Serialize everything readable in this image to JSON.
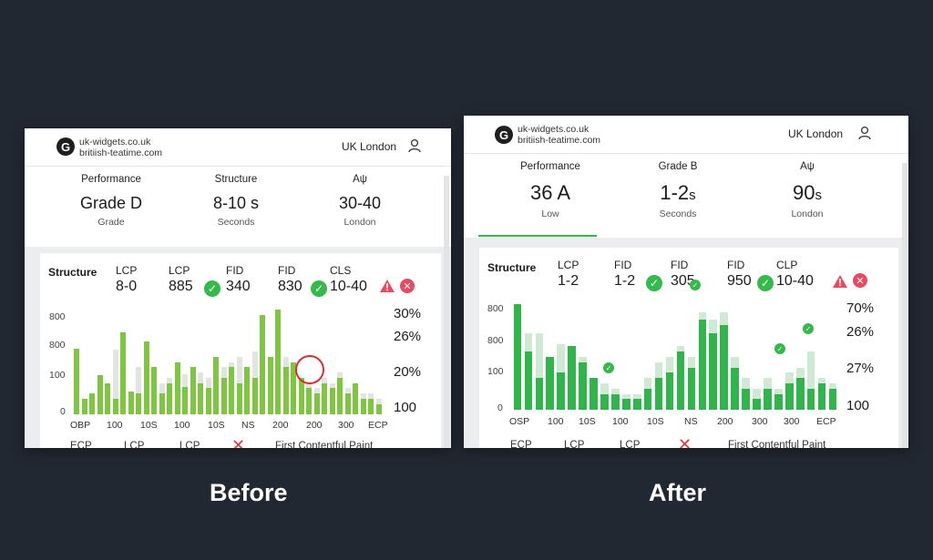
{
  "before": {
    "header": {
      "logo_letter": "G",
      "site_line1": "uk-widgets.co.uk",
      "site_line2": "britiish-teatime.com",
      "location": "UK London"
    },
    "metrics": [
      {
        "label": "Performance",
        "value": "Grade D",
        "sub": "Grade"
      },
      {
        "label": "Structure",
        "value": "8-10 s",
        "sub": "Seconds"
      },
      {
        "label": "Aψ",
        "value": "30-40",
        "sub": "London"
      }
    ],
    "cwv": {
      "title": "Structure",
      "items": [
        {
          "key": "LCP",
          "value": "8-0"
        },
        {
          "key": "LCP",
          "value": "885"
        },
        {
          "key": "FID",
          "value": "340"
        },
        {
          "key": "FID",
          "value": "830"
        },
        {
          "key": "CLS",
          "value": "10-40"
        }
      ],
      "check_glyph": "✓",
      "error_glyph": "✕"
    },
    "y_ticks": [
      "800",
      "800",
      "100",
      "0"
    ],
    "x_ticks": [
      "OBP",
      "100",
      "10S",
      "100",
      "10S",
      "NS",
      "200",
      "200",
      "300",
      "ECP"
    ],
    "right_pct": [
      "30%",
      "26%",
      "20%",
      "100"
    ],
    "bottom_row": [
      "ECP",
      "LCP",
      "LCP",
      "First Contentful Paint"
    ],
    "bottom_x": "✕",
    "caption": "Before",
    "bars_fg": [
      0.63,
      0.15,
      0.2,
      0.37,
      0.3,
      0.15,
      0.78,
      0.22,
      0.2,
      0.7,
      0.45,
      0.2,
      0.3,
      0.5,
      0.26,
      0.45,
      0.3,
      0.25,
      0.55,
      0.35,
      0.45,
      0.3,
      0.45,
      0.35,
      0.95,
      0.55,
      1.0,
      0.45,
      0.5,
      0.35,
      0.25,
      0.2,
      0.3,
      0.25,
      0.35,
      0.2,
      0.3,
      0.15,
      0.15,
      0.1
    ],
    "bars_bg": [
      0.3,
      0.1,
      0.15,
      0.35,
      0.2,
      0.62,
      0.4,
      0.15,
      0.45,
      0.35,
      0.4,
      0.3,
      0.35,
      0.42,
      0.38,
      0.3,
      0.4,
      0.35,
      0.4,
      0.45,
      0.5,
      0.55,
      0.45,
      0.6,
      0.72,
      0.5,
      0.6,
      0.55,
      0.45,
      0.35,
      0.3,
      0.25,
      0.35,
      0.3,
      0.4,
      0.25,
      0.3,
      0.2,
      0.2,
      0.15
    ]
  },
  "after": {
    "header": {
      "logo_letter": "G",
      "site_line1": "uk-widgets.co.uk",
      "site_line2": "britiish-teatime.com",
      "location": "UK London"
    },
    "metrics": [
      {
        "label": "Performance",
        "value_main": "36 A",
        "value_unit": "",
        "sub": "Low"
      },
      {
        "label": "Grade B",
        "value_main": "1-2",
        "value_unit": "s",
        "sub": "Seconds"
      },
      {
        "label": "Aψ",
        "value_main": "90",
        "value_unit": "s",
        "sub": "London"
      }
    ],
    "cwv": {
      "title": "Structure",
      "items": [
        {
          "key": "LCP",
          "value": "1-2"
        },
        {
          "key": "FID",
          "value": "1-2"
        },
        {
          "key": "FID",
          "value": "305"
        },
        {
          "key": "FID",
          "value": "950"
        },
        {
          "key": "CLP",
          "value": "10-40"
        }
      ],
      "check_glyph": "✓",
      "error_glyph": "✕"
    },
    "y_ticks": [
      "800",
      "800",
      "100",
      "0"
    ],
    "x_ticks": [
      "OSP",
      "100",
      "10S",
      "100",
      "10S",
      "NS",
      "200",
      "300",
      "300",
      "ECP"
    ],
    "right_pct": [
      "70%",
      "26%",
      "27%",
      "100"
    ],
    "bottom_row": [
      "ECP",
      "LCP",
      "LCP",
      "First Contentful Paint"
    ],
    "bottom_x": "✕",
    "caption": "After",
    "bars_fg": [
      1.0,
      0.55,
      0.3,
      0.5,
      0.35,
      0.6,
      0.45,
      0.3,
      0.15,
      0.15,
      0.1,
      0.1,
      0.2,
      0.3,
      0.35,
      0.55,
      0.4,
      0.85,
      0.72,
      0.8,
      0.4,
      0.2,
      0.1,
      0.2,
      0.15,
      0.25,
      0.3,
      0.2,
      0.25,
      0.2
    ],
    "bars_bg": [
      0.45,
      0.72,
      0.72,
      0.45,
      0.62,
      0.55,
      0.5,
      0.3,
      0.25,
      0.2,
      0.15,
      0.15,
      0.3,
      0.45,
      0.5,
      0.6,
      0.5,
      0.92,
      0.85,
      0.92,
      0.5,
      0.3,
      0.2,
      0.3,
      0.2,
      0.35,
      0.4,
      0.55,
      0.3,
      0.25
    ]
  },
  "colors": {
    "bg": "#222831",
    "green_before": "#7ec63f",
    "green_before_light": "#dcebcf",
    "green_after": "#2fb54a",
    "green_after_light": "#cfe9d4",
    "ghost_grey": "#e3e3e3",
    "red": "#d92f2f"
  }
}
